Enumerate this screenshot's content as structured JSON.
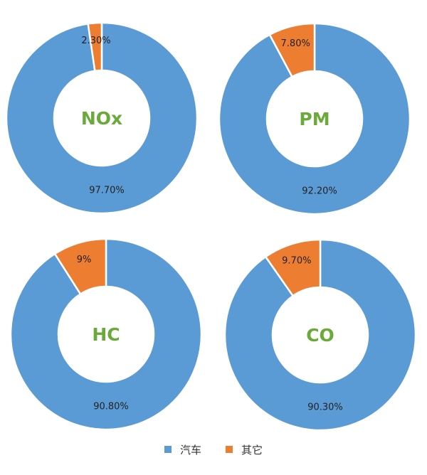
{
  "colors": {
    "series_car": "#5b9bd5",
    "series_other": "#ed7d31",
    "center_text": "#6aaa3a",
    "separator": "#ffffff"
  },
  "legend": {
    "car_label": "汽车",
    "other_label": "其它"
  },
  "chart_data": [
    {
      "type": "pie",
      "title": "NOx",
      "categories": [
        "汽车",
        "其它"
      ],
      "values": [
        97.7,
        2.3
      ],
      "labels": [
        "97.70%",
        "2.30%"
      ]
    },
    {
      "type": "pie",
      "title": "PM",
      "categories": [
        "汽车",
        "其它"
      ],
      "values": [
        92.2,
        7.8
      ],
      "labels": [
        "92.20%",
        "7.80%"
      ]
    },
    {
      "type": "pie",
      "title": "HC",
      "categories": [
        "汽车",
        "其它"
      ],
      "values": [
        90.8,
        9.0
      ],
      "labels": [
        "90.80%",
        "9%"
      ]
    },
    {
      "type": "pie",
      "title": "CO",
      "categories": [
        "汽车",
        "其它"
      ],
      "values": [
        90.3,
        9.7
      ],
      "labels": [
        "90.30%",
        "9.70%"
      ]
    }
  ]
}
